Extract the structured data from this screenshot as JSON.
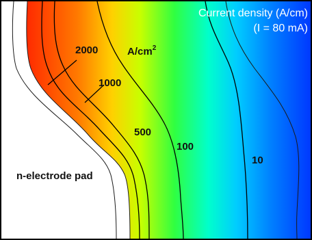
{
  "title": {
    "line1": "Current density (A/cm)",
    "line2": "(I = 80 mA)"
  },
  "pad_label": "n-electrode pad",
  "unit": {
    "text": "A/cm",
    "superscript": "2"
  },
  "contour_labels": [
    "2000",
    "1000",
    "500",
    "100",
    "10"
  ],
  "colors": {
    "frame": "#000000",
    "low": "#0033ff",
    "mid_low": "#00ccff",
    "mid": "#00ff88",
    "mid_high": "#ccff00",
    "high": "#ffcc00",
    "max": "#ff3300"
  }
}
